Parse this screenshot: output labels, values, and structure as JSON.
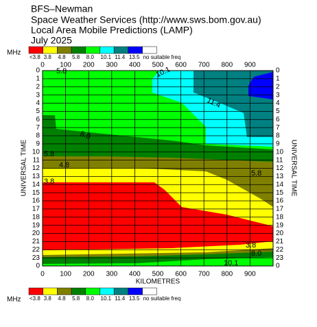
{
  "chart_data": {
    "type": "contour",
    "title_lines": [
      "BFS–Newman",
      "Space Weather Services (http://www.sws.bom.gov.au)",
      "Local Area Mobile Predictions (LAMP)",
      "July 2025"
    ],
    "legend_unit": "MHz",
    "legend": [
      {
        "label": "<3.8",
        "color": "#ff0000"
      },
      {
        "label": "3.8",
        "color": "#ffff00"
      },
      {
        "label": "4.8",
        "color": "#808000"
      },
      {
        "label": "5.8",
        "color": "#008000"
      },
      {
        "label": "8.0",
        "color": "#00ff00"
      },
      {
        "label": "10.1",
        "color": "#00ffff"
      },
      {
        "label": "11.4",
        "color": "#008080"
      },
      {
        "label": "13.5",
        "color": "#0000ff"
      },
      {
        "label": "no suitable freq",
        "color": "#ffffff"
      }
    ],
    "x_label": "KILOMETRES",
    "y_label": "UNIVERSAL TIME",
    "xlim": [
      0,
      1000
    ],
    "xticks": [
      0,
      100,
      200,
      300,
      400,
      500,
      600,
      700,
      800,
      900
    ],
    "ylim": [
      0,
      24
    ],
    "y_reversed": true,
    "yticks": [
      0,
      1,
      2,
      3,
      4,
      5,
      6,
      7,
      8,
      9,
      10,
      11,
      12,
      13,
      14,
      15,
      16,
      17,
      18,
      19,
      20,
      21,
      22,
      23,
      {
        "value": 24,
        "label": "0"
      }
    ],
    "grid": true,
    "contour_labels": [
      "5.8",
      "10.1",
      "11.4",
      "8.0",
      "5.8",
      "4.8",
      "3.8",
      "5.8",
      "3.8",
      "8.0",
      "10.1"
    ]
  }
}
